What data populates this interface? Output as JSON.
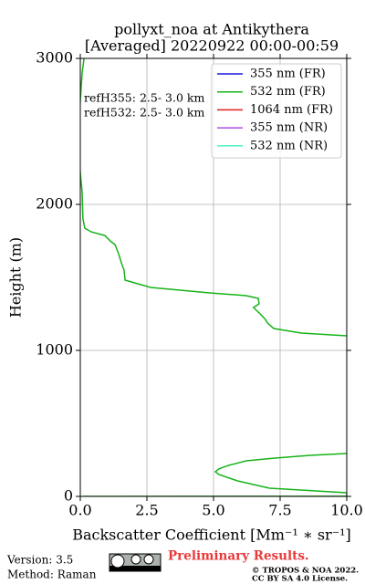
{
  "chart_data": {
    "type": "line",
    "title": "pollyxt_noa at Antikythera",
    "subtitle": "[Averaged] 20220922 00:00-00:59",
    "x_label": "Backscatter Coefficient [Mm⁻¹ ∗ sr⁻¹]",
    "y_label": "Height (m)",
    "xlim": [
      0,
      10
    ],
    "ylim": [
      0,
      3000
    ],
    "xticks": [
      {
        "value": 0,
        "label": "0.0"
      },
      {
        "value": 2.5,
        "label": "2.5"
      },
      {
        "value": 5,
        "label": "5.0"
      },
      {
        "value": 7.5,
        "label": "7.5"
      },
      {
        "value": 10,
        "label": "10.0"
      }
    ],
    "yticks": [
      0,
      1000,
      2000,
      3000
    ],
    "grid": true,
    "legend": "upper right",
    "annotations": [
      "refH355:  2.5- 3.0 km",
      "refH532:  2.5- 3.0 km"
    ],
    "series": [
      {
        "name": "355 nm (FR)",
        "color": "#1a1adb",
        "values": [],
        "heights": []
      },
      {
        "name": "532 nm (FR)",
        "color": "#17b31a",
        "values": [
          0.1,
          10,
          10,
          7.1,
          5.9,
          5.2,
          5.07,
          5.2,
          5.55,
          6.23,
          7.26,
          8.63,
          10,
          null,
          10,
          8.29,
          7.26,
          7.02,
          6.95,
          6.75,
          6.5,
          6.71,
          6.68,
          6.23,
          4.86,
          2.64,
          1.68,
          1.64,
          1.54,
          1.44,
          1.3,
          1.16,
          0.92,
          0.41,
          0.17,
          0.1,
          0.07,
          0,
          -0.07,
          0,
          0.07,
          0.14
        ],
        "heights": [
          0,
          2,
          25,
          56,
          106,
          150,
          169,
          188,
          212,
          244,
          262,
          281,
          294,
          null,
          1100,
          1119,
          1150,
          1188,
          1212,
          1250,
          1294,
          1319,
          1356,
          1375,
          1394,
          1431,
          1481,
          1550,
          1600,
          1662,
          1725,
          1744,
          1787,
          1812,
          1837,
          1900,
          2087,
          2212,
          2462,
          2712,
          2900,
          3000
        ]
      },
      {
        "name": "1064 nm (FR)",
        "color": "#e0201f",
        "values": [],
        "heights": []
      },
      {
        "name": "355 nm (NR)",
        "color": "#b04fe0",
        "values": [],
        "heights": []
      },
      {
        "name": "532 nm (NR)",
        "color": "#4ff0c8",
        "values": [],
        "heights": []
      }
    ]
  },
  "footer": {
    "version": "Version: 3.5",
    "method": "Method: Raman",
    "status": "Preliminary Results.",
    "copyright": "© TROPOS & NOA 2022.",
    "license": "CC BY SA 4.0 License."
  }
}
